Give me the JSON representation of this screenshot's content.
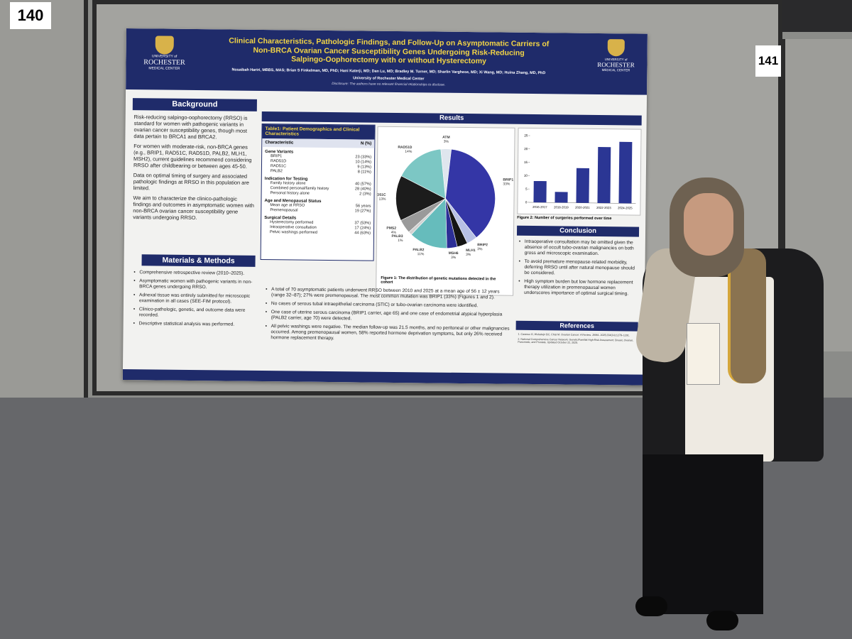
{
  "booth_numbers": [
    "140",
    "141"
  ],
  "poster": {
    "logo_text": [
      "UNIVERSITY of",
      "ROCHESTER",
      "MEDICAL CENTER"
    ],
    "title": [
      "Clinical Characteristics, Pathologic Findings, and Follow-Up on Asymptomatic Carriers of",
      "Non-BRCA Ovarian Cancer Susceptibility Genes Undergoing Risk-Reducing",
      "Salpingo-Oophorectomy with or without Hysterectomy"
    ],
    "authors": "Nosaibah Hariri, MBBS, MAS; Brian S Finkelman, MD, PhD; Hani Katerji, MD; Dan Lu, MD; Bradley M. Turner, MD; Sharlin Varghese, MD; Xi Wang, MD; Huina Zhang, MD, PhD",
    "institution": "University of Rochester Medical Center",
    "disclosure": "Disclosure: The authors have no relevant financial relationships to disclose.",
    "background": {
      "heading": "Background",
      "paragraphs": [
        "Risk-reducing salpingo-oophorectomy (RRSO) is standard for women with pathogenic variants in ovarian cancer susceptibility genes, though most data pertain to BRCA1 and BRCA2.",
        "For women with moderate-risk, non-BRCA genes (e.g., BRIP1, RAD51C, RAD51D, PALB2, MLH1, MSH2), current guidelines recommend considering RRSO after childbearing or between ages 45-50.",
        "Data on optimal timing of surgery and associated pathologic findings at RRSO in this population are limited.",
        "We aim to characterize the clinico-pathologic findings and outcomes in asymptomatic women with non-BRCA ovarian cancer susceptibility gene variants undergoing RRSO."
      ]
    },
    "methods": {
      "heading": "Materials & Methods",
      "bullets": [
        "Comprehensive retrospective review (2010–2025).",
        "Asymptomatic women with pathogenic variants in non-BRCA genes undergoing RRSO.",
        "Adnexal tissue was entirely submitted for microscopic examination in all cases (SEE-FIM protocol).",
        "Clinico-pathologic, genetic, and outcome data were recorded.",
        "Descriptive statistical analysis was performed."
      ]
    },
    "results_heading": "Results",
    "table": {
      "caption": "Table1: Patient Demographics and Clinical Characteristics",
      "header": [
        "Characteristic",
        "N (%)"
      ],
      "sections": [
        {
          "title": "Gene Variants",
          "rows": [
            [
              "BRIP1",
              "23 (33%)"
            ],
            [
              "RAD51D",
              "10 (14%)"
            ],
            [
              "RAD51C",
              "9 (13%)"
            ],
            [
              "PALB2",
              "8 (11%)"
            ]
          ]
        },
        {
          "title": "Indication for Testing",
          "rows": [
            [
              "Family history alone",
              "40 (57%)"
            ],
            [
              "Combined personal/family history",
              "28 (40%)"
            ],
            [
              "Personal history alone",
              "2 (3%)"
            ]
          ]
        },
        {
          "title": "Age and Menopausal Status",
          "rows": [
            [
              "Mean age at RRSO",
              "56 years"
            ],
            [
              "Premenopausal",
              "19 (27%)"
            ]
          ]
        },
        {
          "title": "Surgical Details",
          "rows": [
            [
              "Hysterectomy performed",
              "37 (53%)"
            ],
            [
              "Intraoperative consultation",
              "17 (24%)"
            ],
            [
              "Pelvic washings performed",
              "44 (63%)"
            ]
          ]
        }
      ]
    },
    "results_bullets": [
      "A total of 70 asymptomatic patients underwent RRSO between 2010 and 2025 at a mean age of 56 ± 12 years (range 32–87); 27% were premenopausal. The most common mutation was BRIP1 (33%) (Figures 1 and 2).",
      "No cases of serous tubal intraepithelial carcinoma (STIC) or tubo-ovarian carcinoma were identified.",
      "One case of uterine serous carcinoma (BRIP1 carrier, age 65) and one case of endometrial atypical hyperplasia (PALB2 carrier, age 70) were detected.",
      "All pelvic washings were negative. The median follow-up was 21.5 months, and no peritoneal or other malignancies occurred. Among premenopausal women, 58% reported hormone deprivation symptoms, but only 26% received hormone replacement therapy."
    ],
    "conclusion": {
      "heading": "Conclusion",
      "bullets": [
        "Intraoperative consultation may be omitted given the absence of occult tubo-ovarian malignancies on both gross and microscopic examination.",
        "To avoid premature menopause-related morbidity, deferring RRSO until after natural menopause should be considered.",
        "High symptom burden but low hormone replacement therapy utilization in premenopausal women underscores importance of optimal surgical timing."
      ]
    },
    "references": {
      "heading": "References",
      "items": [
        "1. Carasso G, Wolsztejn BC, Chisi M. Ovarian Cancer: A Review. JAMA. 2025;334(14):1278–1291.",
        "2. National Comprehensive Cancer Network. Genetic/Familial High-Risk Assessment: Breast, Ovarian, Pancreatic, and Prostate. Updated October 22, 2025."
      ]
    }
  },
  "chart_data": [
    {
      "type": "pie",
      "caption": "Figure 1: The distribution of genetic mutations detected in the cohort",
      "categories": [
        "ATM",
        "BRIP1",
        "BRIP2",
        "MLH1",
        "MSH6",
        "PALB2",
        "PALB3",
        "PMS2",
        "RAD51C",
        "RAD51D"
      ],
      "values": [
        3,
        33,
        3,
        3,
        3,
        11,
        1,
        4,
        13,
        14
      ],
      "value_labels": [
        "3%",
        "33%",
        "3%",
        "3%",
        "3%",
        "11%",
        "1%",
        "4%",
        "13%",
        "14%"
      ],
      "colors": [
        "#dfe6ee",
        "#3436a6",
        "#b7c0e4",
        "#141414",
        "#2c2e96",
        "#66bcbc",
        "#d2d2d2",
        "#9a9a9a",
        "#1c1c1c",
        "#7cc7c4"
      ]
    },
    {
      "type": "bar",
      "caption": "Figure 2: Number of surgeries performed over time",
      "categories": [
        "2016-2017",
        "2018-2019",
        "2020-2021",
        "2022-2023",
        "2024-2025"
      ],
      "values": [
        8,
        4,
        13,
        21,
        23
      ],
      "color": "#2b3694",
      "ylim": [
        0,
        25
      ],
      "yticks": [
        0,
        5,
        10,
        15,
        20,
        25
      ]
    }
  ]
}
